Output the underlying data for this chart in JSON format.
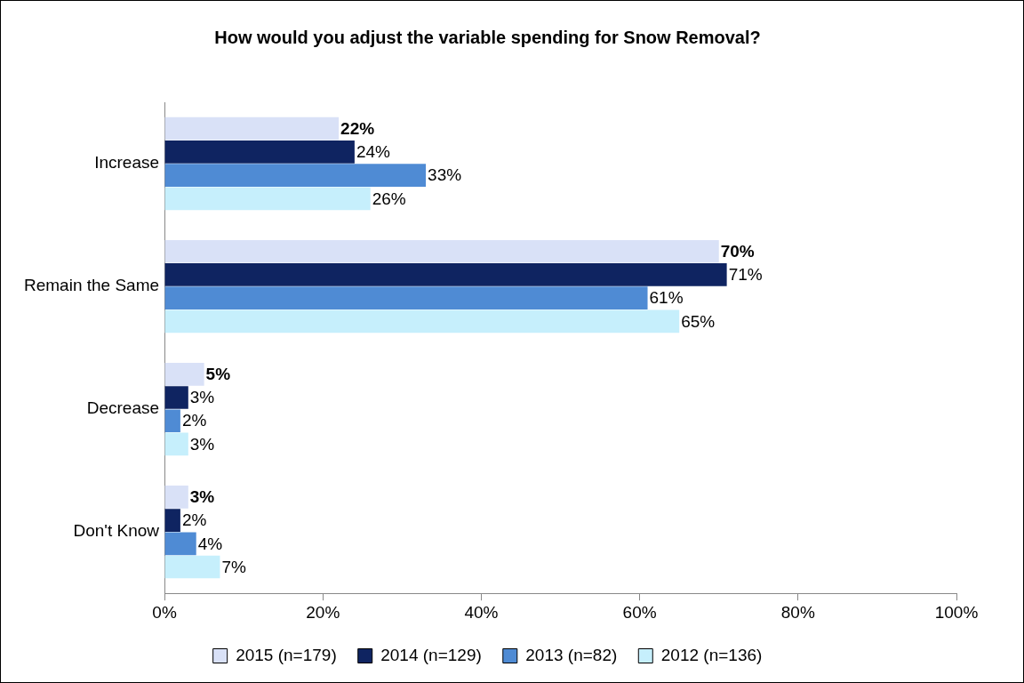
{
  "chart_data": {
    "type": "bar",
    "orientation": "horizontal",
    "title": "How would you adjust the variable spending for Snow Removal?",
    "categories": [
      "Increase",
      "Remain the Same",
      "Decrease",
      "Don't Know"
    ],
    "series": [
      {
        "name": "2015 (n=179)",
        "color": "#d9e1f7",
        "values": [
          22,
          70,
          5,
          3
        ],
        "value_labels": [
          "22%",
          "70%",
          "5%",
          "3%"
        ]
      },
      {
        "name": "2014 (n=129)",
        "color": "#0f2461",
        "values": [
          24,
          71,
          3,
          2
        ],
        "value_labels": [
          "24%",
          "71%",
          "3%",
          "2%"
        ]
      },
      {
        "name": "2013 (n=82)",
        "color": "#4f8bd4",
        "values": [
          33,
          61,
          2,
          4
        ],
        "value_labels": [
          "33%",
          "61%",
          "2%",
          "4%"
        ]
      },
      {
        "name": "2012 (n=136)",
        "color": "#c6effc",
        "values": [
          26,
          65,
          3,
          7
        ],
        "value_labels": [
          "26%",
          "65%",
          "3%",
          "7%"
        ]
      }
    ],
    "xlim": [
      0,
      100
    ],
    "xticks": [
      {
        "value": 0,
        "label": "0%"
      },
      {
        "value": 20,
        "label": "20%"
      },
      {
        "value": 40,
        "label": "40%"
      },
      {
        "value": 60,
        "label": "60%"
      },
      {
        "value": 80,
        "label": "80%"
      },
      {
        "value": 100,
        "label": "100%"
      }
    ],
    "grid": false,
    "legend": "bottom"
  }
}
